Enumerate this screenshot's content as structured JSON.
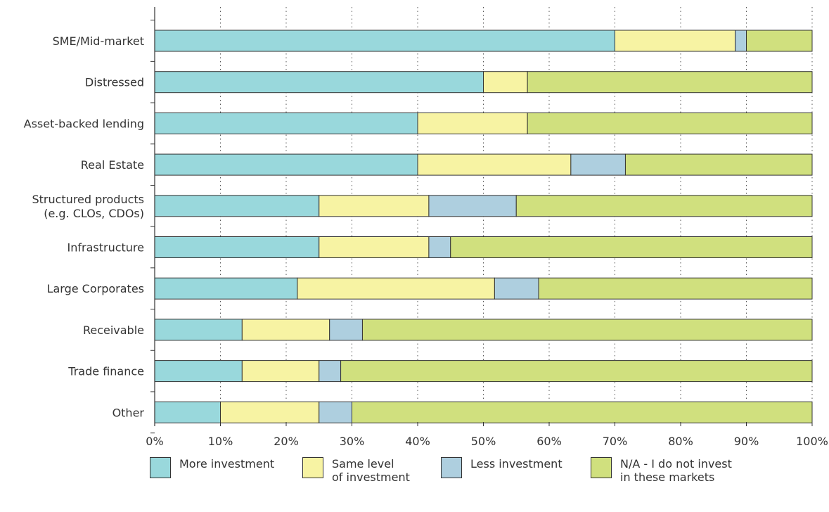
{
  "chart_data": {
    "type": "bar",
    "orientation": "horizontal",
    "stacked": true,
    "title": "",
    "xlabel": "",
    "ylabel": "",
    "xlim": [
      0,
      100
    ],
    "x_ticks": [
      "0%",
      "10%",
      "20%",
      "30%",
      "40%",
      "50%",
      "60%",
      "70%",
      "80%",
      "90%",
      "100%"
    ],
    "grid": "vertical dotted",
    "legend_position": "bottom",
    "categories": [
      "SME/Mid-market",
      "Distressed",
      "Asset-backed lending",
      "Real Estate",
      "Structured products\n(e.g. CLOs, CDOs)",
      "Infrastructure",
      "Large Corporates",
      "Receivable",
      "Trade finance",
      "Other"
    ],
    "series": [
      {
        "name": "More investment",
        "color": "#99d8dc",
        "values": [
          70,
          50,
          40,
          40,
          25,
          25,
          21.7,
          13.3,
          13.3,
          10
        ]
      },
      {
        "name": "Same level\nof investment",
        "color": "#f7f3a3",
        "values": [
          18.3,
          6.7,
          16.7,
          23.3,
          16.7,
          16.7,
          30,
          13.3,
          11.7,
          15
        ]
      },
      {
        "name": "Less investment",
        "color": "#aecfdf",
        "values": [
          1.7,
          0,
          0,
          8.3,
          13.3,
          3.3,
          6.7,
          5,
          3.3,
          5
        ]
      },
      {
        "name": "N/A - I do not invest\nin these markets",
        "color": "#d0e07e",
        "values": [
          10,
          43.3,
          43.3,
          28.4,
          45,
          55,
          41.6,
          68.4,
          71.7,
          70
        ]
      }
    ]
  }
}
